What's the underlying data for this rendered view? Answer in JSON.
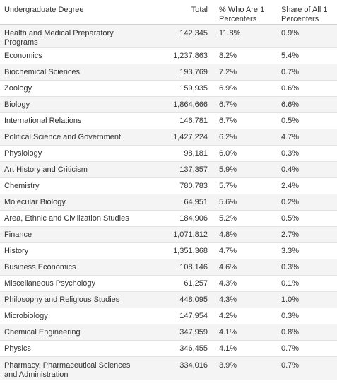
{
  "headers": {
    "degree": "Undergraduate Degree",
    "total": "Total",
    "pct_one_percent": "% Who Are 1 Percenters",
    "share_all": "Share of All 1 Percenters"
  },
  "rows": [
    {
      "degree": "Health and Medical Preparatory Programs",
      "total": "142,345",
      "pct": "11.8%",
      "share": "0.9%"
    },
    {
      "degree": "Economics",
      "total": "1,237,863",
      "pct": "8.2%",
      "share": "5.4%"
    },
    {
      "degree": "Biochemical Sciences",
      "total": "193,769",
      "pct": "7.2%",
      "share": "0.7%"
    },
    {
      "degree": "Zoology",
      "total": "159,935",
      "pct": "6.9%",
      "share": "0.6%"
    },
    {
      "degree": "Biology",
      "total": "1,864,666",
      "pct": "6.7%",
      "share": "6.6%"
    },
    {
      "degree": "International Relations",
      "total": "146,781",
      "pct": "6.7%",
      "share": "0.5%"
    },
    {
      "degree": "Political Science and Government",
      "total": "1,427,224",
      "pct": "6.2%",
      "share": "4.7%"
    },
    {
      "degree": "Physiology",
      "total": "98,181",
      "pct": "6.0%",
      "share": "0.3%"
    },
    {
      "degree": "Art History and Criticism",
      "total": "137,357",
      "pct": "5.9%",
      "share": "0.4%"
    },
    {
      "degree": "Chemistry",
      "total": "780,783",
      "pct": "5.7%",
      "share": "2.4%"
    },
    {
      "degree": "Molecular Biology",
      "total": "64,951",
      "pct": "5.6%",
      "share": "0.2%"
    },
    {
      "degree": "Area, Ethnic and Civilization Studies",
      "total": "184,906",
      "pct": "5.2%",
      "share": "0.5%"
    },
    {
      "degree": "Finance",
      "total": "1,071,812",
      "pct": "4.8%",
      "share": "2.7%"
    },
    {
      "degree": "History",
      "total": "1,351,368",
      "pct": "4.7%",
      "share": "3.3%"
    },
    {
      "degree": "Business Economics",
      "total": "108,146",
      "pct": "4.6%",
      "share": "0.3%"
    },
    {
      "degree": "Miscellaneous Psychology",
      "total": "61,257",
      "pct": "4.3%",
      "share": "0.1%"
    },
    {
      "degree": "Philosophy and Religious Studies",
      "total": "448,095",
      "pct": "4.3%",
      "share": "1.0%"
    },
    {
      "degree": "Microbiology",
      "total": "147,954",
      "pct": "4.2%",
      "share": "0.3%"
    },
    {
      "degree": "Chemical Engineering",
      "total": "347,959",
      "pct": "4.1%",
      "share": "0.8%"
    },
    {
      "degree": "Physics",
      "total": "346,455",
      "pct": "4.1%",
      "share": "0.7%"
    },
    {
      "degree": "Pharmacy, Pharmaceutical Sciences and Administration",
      "total": "334,016",
      "pct": "3.9%",
      "share": "0.7%"
    }
  ]
}
